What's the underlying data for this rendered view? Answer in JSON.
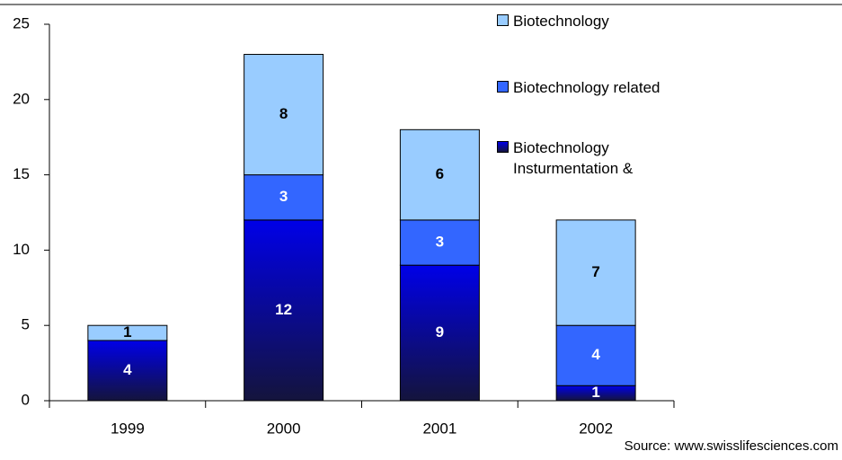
{
  "chart_data": {
    "type": "stacked_bar",
    "categories": [
      "1999",
      "2000",
      "2001",
      "2002"
    ],
    "series": [
      {
        "name": "Biotechnology Insturmentation &",
        "color": "#0000e8",
        "values": [
          4,
          12,
          9,
          1
        ]
      },
      {
        "name": "Biotechnology related",
        "color": "#3366ff",
        "values": [
          0,
          3,
          3,
          4
        ]
      },
      {
        "name": "Biotechnology",
        "color": "#99ccff",
        "values": [
          1,
          8,
          6,
          7
        ]
      }
    ],
    "ylim": [
      0,
      25
    ],
    "yticks": [
      0,
      5,
      10,
      15,
      20,
      25
    ],
    "source": "Source: www.swisslifesciences.com"
  }
}
